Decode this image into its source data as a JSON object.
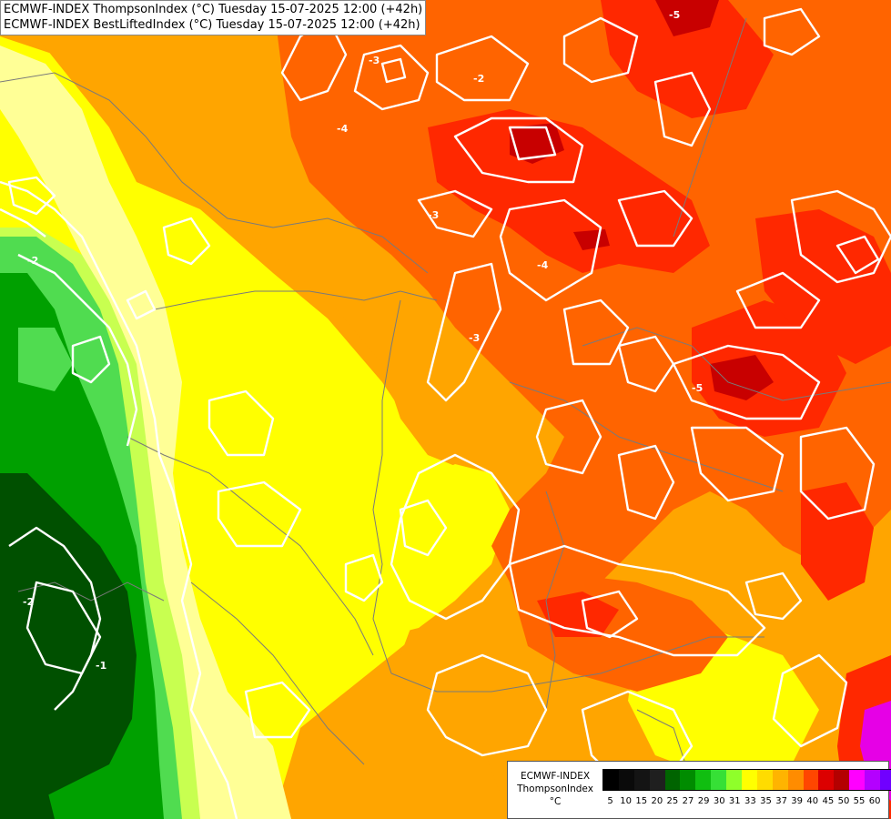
{
  "title": {
    "line1": "ECMWF-INDEX ThompsonIndex (°C) Tuesday 15-07-2025 12:00 (+42h)",
    "line2": "ECMWF-INDEX BestLiftedIndex (°C) Tuesday 15-07-2025 12:00 (+42h)"
  },
  "legend": {
    "model": "ECMWF-INDEX",
    "field": "ThompsonIndex",
    "unit": "°C",
    "ticks": [
      "5",
      "10",
      "15",
      "20",
      "25",
      "27",
      "29",
      "30",
      "31",
      "33",
      "35",
      "37",
      "39",
      "40",
      "45",
      "50",
      "55",
      "60"
    ],
    "colors": [
      "#000000",
      "#0a0a0a",
      "#141414",
      "#1f1f1f",
      "#006400",
      "#008c00",
      "#10be10",
      "#36e036",
      "#8fff2a",
      "#ffff00",
      "#ffdc00",
      "#ffb400",
      "#ff8c00",
      "#ff4600",
      "#dc0000",
      "#b40000",
      "#ff00ff",
      "#b400ff",
      "#7000ff",
      "#0000ff"
    ]
  },
  "contour_labels": [
    "-2",
    "-2",
    "-3",
    "-3",
    "-4",
    "-4",
    "-5",
    "-5",
    "-2",
    "-3",
    "-1"
  ],
  "field_colors": {
    "deep_green": "#005000",
    "green": "#00a000",
    "light_green": "#50dc50",
    "yellow_green": "#c8ff50",
    "pale_yellow": "#ffff96",
    "yellow": "#ffff00",
    "light_orange": "#ffc000",
    "orange": "#ff9600",
    "dark_orange": "#ff6400",
    "red": "#ff2800",
    "dark_red": "#c80000",
    "magenta": "#e600e6"
  }
}
